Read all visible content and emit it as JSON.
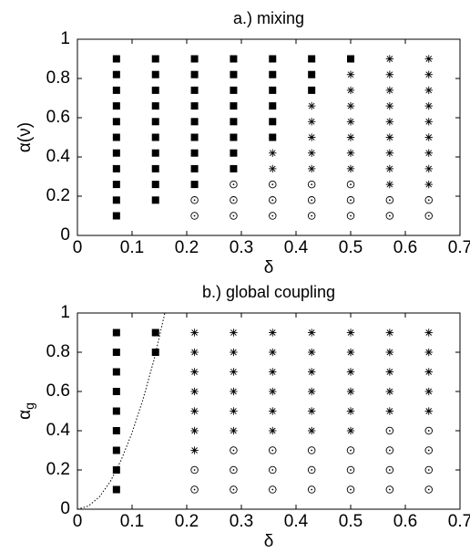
{
  "chart_data": [
    {
      "type": "scatter",
      "title": "a.) mixing",
      "xlabel": "δ",
      "ylabel": "α(ν)",
      "xlim": [
        0,
        0.7
      ],
      "xticks": [
        0,
        0.1,
        0.2,
        0.3,
        0.4,
        0.5,
        0.6,
        0.7
      ],
      "ylim": [
        0,
        1
      ],
      "yticks": [
        0,
        0.2,
        0.4,
        0.6,
        0.8,
        1
      ],
      "series": [
        {
          "marker": "square",
          "color": "#000000",
          "x": [
            0.0714,
            0.0714,
            0.0714,
            0.0714,
            0.0714,
            0.0714,
            0.0714,
            0.0714,
            0.0714,
            0.0714,
            0.0714,
            0.1429,
            0.1429,
            0.1429,
            0.1429,
            0.1429,
            0.1429,
            0.1429,
            0.1429,
            0.1429,
            0.1429,
            0.2143,
            0.2143,
            0.2143,
            0.2143,
            0.2143,
            0.2143,
            0.2143,
            0.2143,
            0.2143,
            0.2857,
            0.2857,
            0.2857,
            0.2857,
            0.2857,
            0.2857,
            0.2857,
            0.2857,
            0.3571,
            0.3571,
            0.3571,
            0.3571,
            0.3571,
            0.3571,
            0.4286,
            0.4286,
            0.4286,
            0.5
          ],
          "values": [
            0.1,
            0.18,
            0.26,
            0.34,
            0.42,
            0.5,
            0.58,
            0.66,
            0.74,
            0.82,
            0.9,
            0.18,
            0.26,
            0.34,
            0.42,
            0.5,
            0.58,
            0.66,
            0.74,
            0.82,
            0.9,
            0.26,
            0.34,
            0.42,
            0.5,
            0.58,
            0.66,
            0.74,
            0.82,
            0.9,
            0.34,
            0.42,
            0.5,
            0.58,
            0.66,
            0.74,
            0.82,
            0.9,
            0.5,
            0.58,
            0.66,
            0.74,
            0.82,
            0.9,
            0.74,
            0.82,
            0.9,
            0.9
          ]
        },
        {
          "marker": "circle",
          "color": "#000000",
          "x": [
            0.2143,
            0.2143,
            0.2857,
            0.2857,
            0.2857,
            0.3571,
            0.3571,
            0.3571,
            0.4286,
            0.4286,
            0.4286,
            0.5,
            0.5,
            0.5,
            0.5714,
            0.5714,
            0.6429,
            0.6429
          ],
          "values": [
            0.1,
            0.18,
            0.1,
            0.18,
            0.26,
            0.1,
            0.18,
            0.26,
            0.1,
            0.18,
            0.26,
            0.1,
            0.18,
            0.26,
            0.1,
            0.18,
            0.1,
            0.18
          ]
        },
        {
          "marker": "asterisk",
          "color": "#000000",
          "x": [
            0.3571,
            0.3571,
            0.4286,
            0.4286,
            0.4286,
            0.4286,
            0.4286,
            0.5,
            0.5,
            0.5,
            0.5,
            0.5,
            0.5,
            0.5,
            0.5714,
            0.5714,
            0.5714,
            0.5714,
            0.5714,
            0.5714,
            0.5714,
            0.5714,
            0.5714,
            0.6429,
            0.6429,
            0.6429,
            0.6429,
            0.6429,
            0.6429,
            0.6429,
            0.6429,
            0.6429
          ],
          "values": [
            0.34,
            0.42,
            0.34,
            0.42,
            0.5,
            0.58,
            0.66,
            0.34,
            0.42,
            0.5,
            0.58,
            0.66,
            0.74,
            0.82,
            0.26,
            0.34,
            0.42,
            0.5,
            0.58,
            0.66,
            0.74,
            0.82,
            0.9,
            0.26,
            0.34,
            0.42,
            0.5,
            0.58,
            0.66,
            0.74,
            0.82,
            0.9
          ]
        }
      ]
    },
    {
      "type": "scatter",
      "title": "b.) global coupling",
      "xlabel": "δ",
      "ylabel": "α",
      "ylabel_sub": "g",
      "xlim": [
        0,
        0.7
      ],
      "xticks": [
        0,
        0.1,
        0.2,
        0.3,
        0.4,
        0.5,
        0.6,
        0.7
      ],
      "ylim": [
        0,
        1
      ],
      "yticks": [
        0,
        0.2,
        0.4,
        0.6,
        0.8,
        1
      ],
      "series": [
        {
          "marker": "square",
          "color": "#000000",
          "x": [
            0.0714,
            0.0714,
            0.0714,
            0.0714,
            0.0714,
            0.0714,
            0.0714,
            0.0714,
            0.0714,
            0.1429,
            0.1429
          ],
          "values": [
            0.1,
            0.2,
            0.3,
            0.4,
            0.5,
            0.6,
            0.7,
            0.8,
            0.9,
            0.8,
            0.9
          ]
        },
        {
          "marker": "circle",
          "color": "#000000",
          "x": [
            0.2143,
            0.2143,
            0.2857,
            0.2857,
            0.2857,
            0.3571,
            0.3571,
            0.3571,
            0.4286,
            0.4286,
            0.4286,
            0.5,
            0.5,
            0.5,
            0.5714,
            0.5714,
            0.5714,
            0.5714,
            0.6429,
            0.6429,
            0.6429,
            0.6429
          ],
          "values": [
            0.1,
            0.2,
            0.1,
            0.2,
            0.3,
            0.1,
            0.2,
            0.3,
            0.1,
            0.2,
            0.3,
            0.1,
            0.2,
            0.3,
            0.1,
            0.2,
            0.3,
            0.4,
            0.1,
            0.2,
            0.3,
            0.4
          ]
        },
        {
          "marker": "asterisk",
          "color": "#000000",
          "x": [
            0.2143,
            0.2143,
            0.2143,
            0.2143,
            0.2143,
            0.2143,
            0.2143,
            0.2857,
            0.2857,
            0.2857,
            0.2857,
            0.2857,
            0.2857,
            0.3571,
            0.3571,
            0.3571,
            0.3571,
            0.3571,
            0.3571,
            0.4286,
            0.4286,
            0.4286,
            0.4286,
            0.4286,
            0.4286,
            0.5,
            0.5,
            0.5,
            0.5,
            0.5,
            0.5,
            0.5714,
            0.5714,
            0.5714,
            0.5714,
            0.5714,
            0.6429,
            0.6429,
            0.6429,
            0.6429,
            0.6429
          ],
          "values": [
            0.3,
            0.4,
            0.5,
            0.6,
            0.7,
            0.8,
            0.9,
            0.4,
            0.5,
            0.6,
            0.7,
            0.8,
            0.9,
            0.4,
            0.5,
            0.6,
            0.7,
            0.8,
            0.9,
            0.4,
            0.5,
            0.6,
            0.7,
            0.8,
            0.9,
            0.4,
            0.5,
            0.6,
            0.7,
            0.8,
            0.9,
            0.5,
            0.6,
            0.7,
            0.8,
            0.9,
            0.5,
            0.6,
            0.7,
            0.8,
            0.9
          ]
        },
        {
          "marker": "dotted-line",
          "color": "#000000",
          "x": [
            0,
            0.02,
            0.04,
            0.06,
            0.08,
            0.1,
            0.12,
            0.14,
            0.16
          ],
          "values": [
            0,
            0.016,
            0.062,
            0.14,
            0.25,
            0.39,
            0.56,
            0.76,
            1.0
          ]
        }
      ]
    }
  ]
}
